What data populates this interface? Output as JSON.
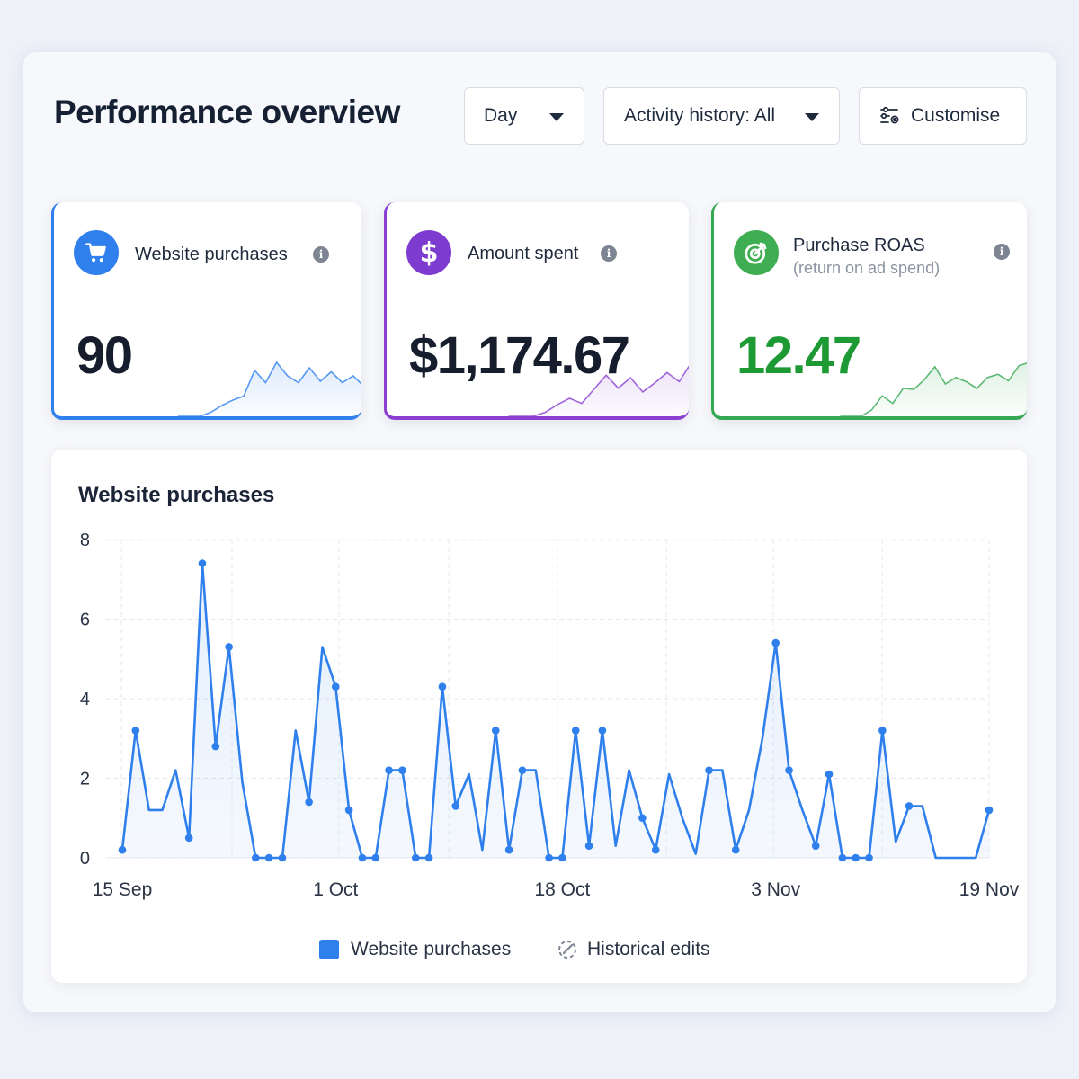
{
  "header": {
    "title": "Performance overview",
    "day_label": "Day",
    "activity_label": "Activity history: All",
    "customise_label": "Customise"
  },
  "cards": [
    {
      "label": "Website purchases",
      "sublabel": "",
      "value": "90",
      "color": "#2f80ed",
      "icon": "shopping-cart-icon",
      "spark": [
        0,
        0,
        0,
        0.3,
        0.8,
        1.2,
        1.5,
        3.4,
        2.5,
        4.0,
        3.0,
        2.5,
        3.6,
        2.6,
        3.3,
        2.5,
        3.0,
        2.2
      ]
    },
    {
      "label": "Amount spent",
      "sublabel": "",
      "value": "$1,174.67",
      "color": "#8a3fd1",
      "icon": "dollar-icon",
      "spark": [
        0,
        0,
        0,
        0.3,
        0.9,
        1.4,
        1.0,
        2.1,
        3.2,
        2.2,
        3.0,
        1.9,
        2.6,
        3.4,
        2.7,
        4.2
      ]
    },
    {
      "label": "Purchase ROAS",
      "sublabel": "(return on ad spend)",
      "value": "12.47",
      "color": "#34a853",
      "icon": "target-icon",
      "spark": [
        0,
        0,
        0,
        0.6,
        1.9,
        1.2,
        2.6,
        2.5,
        3.4,
        4.6,
        3.0,
        3.6,
        3.2,
        2.6,
        3.6,
        3.9,
        3.3,
        4.7,
        5.0
      ]
    }
  ],
  "chart": {
    "title": "Website purchases",
    "legend": {
      "series": "Website purchases",
      "edits": "Historical edits"
    }
  },
  "chart_data": {
    "type": "line",
    "title": "Website purchases",
    "xlabel": "",
    "ylabel": "",
    "ylim": [
      0,
      8
    ],
    "yticks": [
      "0",
      "2",
      "4",
      "6",
      "8"
    ],
    "xticks": [
      "15 Sep",
      "1 Oct",
      "18 Oct",
      "3 Nov",
      "19 Nov"
    ],
    "grid": true,
    "legend_placement": "bottom-center",
    "series": [
      {
        "name": "Website purchases",
        "color": "#2f80ed",
        "x": [
          "15 Sep",
          "16 Sep",
          "17 Sep",
          "18 Sep",
          "19 Sep",
          "20 Sep",
          "21 Sep",
          "22 Sep",
          "23 Sep",
          "24 Sep",
          "25 Sep",
          "26 Sep",
          "27 Sep",
          "28 Sep",
          "29 Sep",
          "30 Sep",
          "1 Oct",
          "2 Oct",
          "3 Oct",
          "4 Oct",
          "5 Oct",
          "6 Oct",
          "7 Oct",
          "8 Oct",
          "9 Oct",
          "10 Oct",
          "11 Oct",
          "12 Oct",
          "13 Oct",
          "14 Oct",
          "15 Oct",
          "16 Oct",
          "17 Oct",
          "18 Oct",
          "19 Oct",
          "20 Oct",
          "21 Oct",
          "22 Oct",
          "23 Oct",
          "24 Oct",
          "25 Oct",
          "26 Oct",
          "27 Oct",
          "28 Oct",
          "29 Oct",
          "30 Oct",
          "31 Oct",
          "1 Nov",
          "2 Nov",
          "3 Nov",
          "4 Nov",
          "5 Nov",
          "6 Nov",
          "7 Nov",
          "8 Nov",
          "9 Nov",
          "10 Nov",
          "11 Nov",
          "12 Nov",
          "13 Nov",
          "14 Nov",
          "15 Nov",
          "16 Nov",
          "17 Nov",
          "18 Nov",
          "19 Nov"
        ],
        "values": [
          0.2,
          3.2,
          1.2,
          1.2,
          2.2,
          0.5,
          7.4,
          2.8,
          5.3,
          1.9,
          0,
          0,
          0,
          3.2,
          1.4,
          5.3,
          4.3,
          1.2,
          0,
          0,
          2.2,
          2.2,
          0,
          0,
          4.3,
          1.3,
          2.1,
          0.2,
          3.2,
          0.2,
          2.2,
          2.2,
          0,
          0,
          3.2,
          0.3,
          3.2,
          0.3,
          2.2,
          1.0,
          0.2,
          2.1,
          1.0,
          0.1,
          2.2,
          2.2,
          0.2,
          1.2,
          3.0,
          5.4,
          2.2,
          1.2,
          0.3,
          2.1,
          0,
          0,
          0,
          3.2,
          0.4,
          1.3,
          1.3,
          0,
          0,
          0,
          0,
          1.2
        ],
        "markers": [
          0,
          1,
          5,
          6,
          7,
          8,
          10,
          11,
          12,
          14,
          16,
          17,
          18,
          19,
          20,
          21,
          22,
          23,
          24,
          25,
          28,
          29,
          30,
          32,
          33,
          34,
          35,
          36,
          39,
          40,
          44,
          46,
          49,
          50,
          52,
          53,
          54,
          55,
          56,
          57,
          59,
          65
        ]
      }
    ]
  }
}
